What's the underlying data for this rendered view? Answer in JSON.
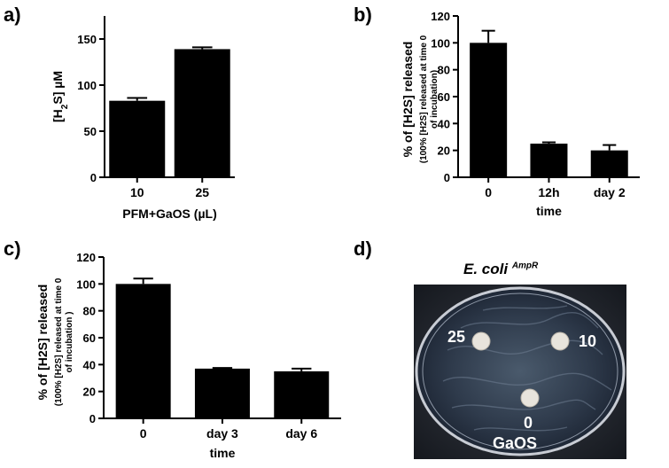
{
  "panels": {
    "a": "a)",
    "b": "b)",
    "c": "c)",
    "d": "d)"
  },
  "chart_data": [
    {
      "id": "a",
      "type": "bar",
      "categories": [
        "10",
        "25"
      ],
      "values": [
        83,
        139
      ],
      "errors": [
        3,
        2
      ],
      "ylabel_main": "[H",
      "ylabel_sub": "2",
      "ylabel_end": "S] µM",
      "xlabel": "PFM+GaOS (µL)",
      "ylim": [
        0,
        175
      ],
      "yticks": [
        0,
        50,
        100,
        150
      ]
    },
    {
      "id": "b",
      "type": "bar",
      "categories": [
        "0",
        "12h",
        "day 2"
      ],
      "values": [
        100,
        25,
        20
      ],
      "errors": [
        9,
        1,
        4
      ],
      "ylabel_line1": "% of [H2S] released",
      "ylabel_line2": "(100% [H2S] released at time 0",
      "ylabel_line3": "of incubation)",
      "xlabel": "time",
      "ylim": [
        0,
        120
      ],
      "yticks": [
        0,
        20,
        40,
        60,
        80,
        100,
        120
      ]
    },
    {
      "id": "c",
      "type": "bar",
      "categories": [
        "0",
        "day 3",
        "day 6"
      ],
      "values": [
        100,
        37,
        35
      ],
      "errors": [
        4,
        0.5,
        2
      ],
      "ylabel_line1": "% of [H2S] released",
      "ylabel_line2": "(100% [H2S] released at time 0",
      "ylabel_line3": "of incubation )",
      "xlabel": "time",
      "ylim": [
        0,
        120
      ],
      "yticks": [
        0,
        20,
        40,
        60,
        80,
        100,
        120
      ]
    }
  ],
  "dish": {
    "title_main": "E. coli",
    "title_sup": "AmpR",
    "labels": [
      "25",
      "10",
      "0",
      "GaOS"
    ]
  }
}
